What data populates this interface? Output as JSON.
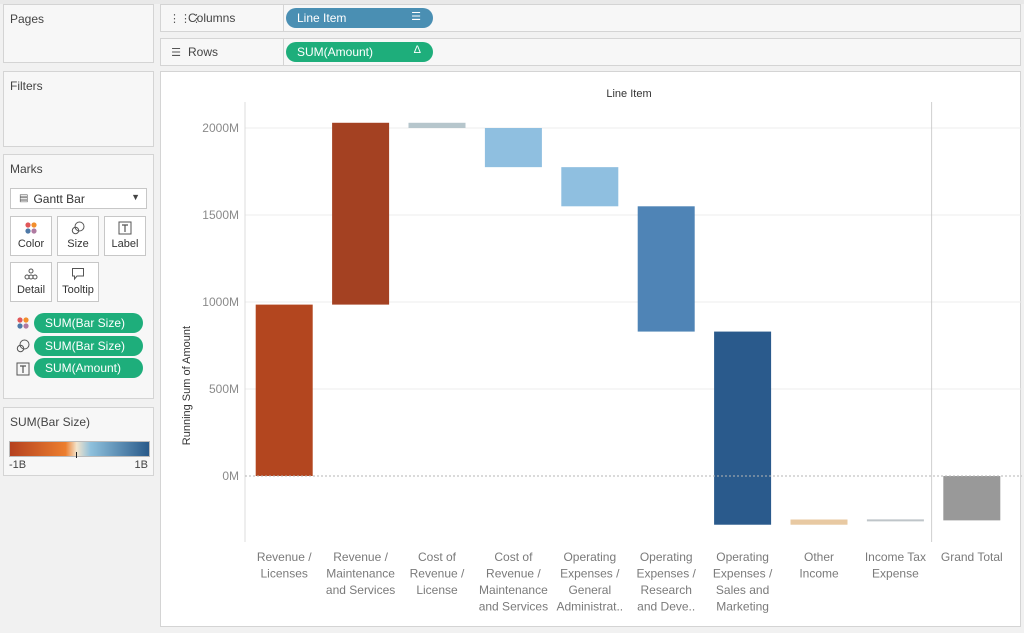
{
  "panels": {
    "pages_title": "Pages",
    "filters_title": "Filters",
    "marks_title": "Marks",
    "legend_title": "SUM(Bar Size)",
    "legend_min": "-1B",
    "legend_max": "1B"
  },
  "shelves": {
    "columns_label": "Columns",
    "rows_label": "Rows",
    "columns_pill": "Line Item",
    "rows_pill": "SUM(Amount)",
    "columns_pill_icon": "sort-descending-icon",
    "rows_pill_icon": "delta-icon"
  },
  "marks": {
    "mark_type": "Gantt Bar",
    "buttons": {
      "color": "Color",
      "size": "Size",
      "label": "Label",
      "detail": "Detail",
      "tooltip": "Tooltip"
    },
    "fields": [
      {
        "label": "SUM(Bar Size)",
        "icon": "color-dots-icon"
      },
      {
        "label": "SUM(Bar Size)",
        "icon": "size-icon"
      },
      {
        "label": "SUM(Amount)",
        "icon": "label-icon"
      }
    ]
  },
  "colors": {
    "pill_blue": "#4a8fb3",
    "pill_green": "#1eae7b",
    "legend_gradient": [
      "#b5411f",
      "#ec7e2e",
      "#f3e4cc",
      "#8ec0dc",
      "#295a8a"
    ]
  },
  "chart_data": {
    "type": "bar",
    "subtype": "waterfall",
    "title": "Line Item",
    "xlabel": "Line Item",
    "ylabel": "Running Sum of Amount",
    "ylim": [
      -320,
      2100
    ],
    "yticks": [
      0,
      500,
      1000,
      1500,
      2000
    ],
    "ytick_labels": [
      "0M",
      "500M",
      "1000M",
      "1500M",
      "2000M"
    ],
    "categories": [
      [
        "Revenue /",
        "Licenses"
      ],
      [
        "Revenue /",
        "Maintenance",
        "and Services"
      ],
      [
        "Cost of",
        "Revenue /",
        "License"
      ],
      [
        "Cost of",
        "Revenue /",
        "Maintenance",
        "and Services"
      ],
      [
        "Operating",
        "Expenses /",
        "General",
        "Administrat.."
      ],
      [
        "Operating",
        "Expenses /",
        "Research",
        "and Deve.."
      ],
      [
        "Operating",
        "Expenses /",
        "Sales and",
        "Marketing"
      ],
      [
        "Other",
        "Income"
      ],
      [
        "Income Tax",
        "Expense"
      ],
      [
        "Grand Total"
      ]
    ],
    "bars": [
      {
        "start": 0,
        "end": 985,
        "color": "#b3461f"
      },
      {
        "start": 985,
        "end": 2030,
        "color": "#a44122"
      },
      {
        "start": 2030,
        "end": 2000,
        "color": "#b6c6cc"
      },
      {
        "start": 2000,
        "end": 1775,
        "color": "#8fbfe0"
      },
      {
        "start": 1775,
        "end": 1550,
        "color": "#8fbfe0"
      },
      {
        "start": 1550,
        "end": 830,
        "color": "#4f84b6"
      },
      {
        "start": 830,
        "end": -280,
        "color": "#2a5a8c"
      },
      {
        "start": -280,
        "end": -250,
        "color": "#e8c9a2"
      },
      {
        "start": -250,
        "end": -255,
        "color": "#bfc5c9"
      },
      {
        "start": 0,
        "end": -255,
        "color": "#999999"
      }
    ],
    "grid": true,
    "legend": "left-panel"
  }
}
